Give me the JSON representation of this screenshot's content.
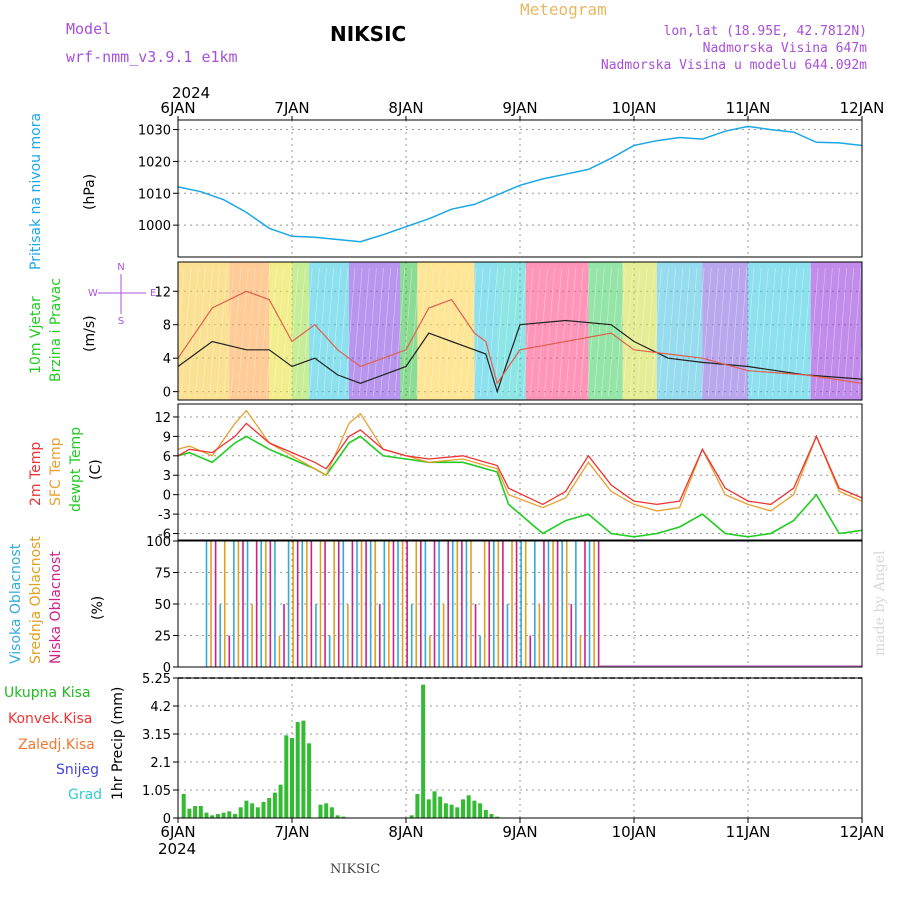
{
  "header": {
    "model_label": "Model",
    "model_name": "wrf-nmm_v3.9.1 e1km",
    "title": "NIKSIC",
    "meteogram": "Meteogram",
    "lonlat": "lon,lat (18.95E, 42.7812N)",
    "altitude": "Nadmorska Visina 647m",
    "model_altitude": "Nadmorska Visina u modelu 644.092m",
    "year_top": "2024",
    "year_bottom": "2024",
    "footer": "NIKSIC",
    "credit": "made by Angel"
  },
  "colors": {
    "pressure": "#1aa7e8",
    "temp2m": "#ee3333",
    "sfc": "#e8a030",
    "dew": "#22cc22",
    "high_cloud": "#33aadd",
    "mid_cloud": "#e0a020",
    "low_cloud": "#cc2288",
    "precip": "#33bb33"
  },
  "time_axis": {
    "ticks": [
      "6JAN",
      "7JAN",
      "8JAN",
      "9JAN",
      "10JAN",
      "11JAN",
      "12JAN"
    ]
  },
  "panels": {
    "pressure": {
      "labels": [
        "Pritisak na nivou mora",
        "(hPa)"
      ]
    },
    "wind": {
      "labels": [
        "10m Vjetar",
        "Brzina i Pravac",
        "(m/s)"
      ],
      "compass": [
        "W",
        "E",
        "N",
        "S"
      ]
    },
    "temp": {
      "labels": [
        "2m Temp",
        "SFC Temp",
        "dewpt Temp",
        "(C)"
      ]
    },
    "cloud": {
      "labels": [
        "Visoka Oblacnost",
        "Srednja Oblacnost",
        "Niska Oblacnost",
        "(%)"
      ]
    },
    "precip": {
      "labels": [
        "Ukupna Kisa",
        "Konvek.Kisa",
        "Zaledj.Kisa",
        "Snijeg",
        "Grad",
        "1hr Precip (mm)"
      ]
    }
  },
  "chart_data": [
    {
      "type": "line",
      "name": "pressure",
      "ylabel": "Pritisak na nivou mora (hPa)",
      "ylim": [
        990,
        1033
      ],
      "yticks": [
        1000,
        1010,
        1020,
        1030
      ],
      "x": [
        0,
        0.2,
        0.4,
        0.6,
        0.8,
        1.0,
        1.2,
        1.4,
        1.6,
        1.8,
        2.0,
        2.2,
        2.4,
        2.6,
        2.8,
        3.0,
        3.2,
        3.4,
        3.6,
        3.8,
        4.0,
        4.2,
        4.4,
        4.6,
        4.8,
        5.0,
        5.2,
        5.4,
        5.6,
        5.8,
        6.0
      ],
      "series": [
        {
          "values": [
            1012,
            1010.5,
            1008,
            1004,
            999,
            996.5,
            996.2,
            995.5,
            994.8,
            997,
            999.5,
            1002,
            1005,
            1006.5,
            1009.5,
            1012.5,
            1014.5,
            1016,
            1017.5,
            1021,
            1025,
            1026.5,
            1027.5,
            1027,
            1029.5,
            1031,
            1030,
            1029.2,
            1026,
            1025.8,
            1025
          ]
        }
      ]
    },
    {
      "type": "line",
      "name": "wind",
      "ylabel": "10m Vjetar Brzina i Pravac (m/s)",
      "ylim": [
        -1,
        15.5
      ],
      "yticks": [
        0,
        4,
        8,
        12
      ],
      "x": [
        0,
        0.3,
        0.6,
        0.8,
        1.0,
        1.2,
        1.4,
        1.6,
        1.8,
        2.0,
        2.2,
        2.4,
        2.6,
        2.7,
        2.8,
        3.0,
        3.4,
        3.8,
        4.0,
        4.3,
        4.6,
        5.0,
        5.5,
        6.0
      ],
      "series": [
        {
          "values": [
            3,
            6,
            5,
            5,
            3,
            4,
            2,
            1,
            2,
            3,
            7,
            6,
            5,
            4.5,
            0,
            8,
            8.5,
            8,
            6,
            4,
            3.5,
            3,
            2,
            1.5
          ]
        },
        {
          "values": [
            4,
            10,
            12,
            11,
            6,
            8,
            5,
            3,
            4,
            5,
            10,
            11,
            7,
            6,
            1,
            5,
            6,
            7,
            5,
            4.5,
            4,
            2.5,
            2,
            1
          ]
        }
      ]
    },
    {
      "type": "line",
      "name": "temperature",
      "ylabel": "(C)",
      "ylim": [
        -7,
        14
      ],
      "yticks": [
        -6,
        -3,
        0,
        3,
        6,
        9,
        12
      ],
      "x": [
        0,
        0.1,
        0.3,
        0.5,
        0.6,
        0.8,
        1.0,
        1.2,
        1.3,
        1.5,
        1.6,
        1.8,
        2.0,
        2.2,
        2.5,
        2.8,
        2.9,
        3.2,
        3.4,
        3.6,
        3.8,
        4.0,
        4.2,
        4.4,
        4.6,
        4.8,
        5.0,
        5.2,
        5.4,
        5.6,
        5.8,
        6.0
      ],
      "series": [
        {
          "name": "2m Temp",
          "values": [
            6,
            7,
            6.5,
            9,
            11,
            8,
            6.5,
            5,
            4,
            9,
            10,
            7,
            6,
            5.5,
            6,
            4.5,
            1,
            -1.5,
            0.5,
            6,
            1.5,
            -1,
            -1.5,
            -1,
            7,
            1,
            -1,
            -1.5,
            1,
            9,
            1,
            -0.5
          ]
        },
        {
          "name": "SFC Temp",
          "values": [
            7,
            7.5,
            6,
            11,
            13,
            8,
            6,
            4,
            3,
            11,
            12.5,
            7,
            6,
            5,
            5.5,
            4,
            0,
            -2,
            -0.5,
            5,
            0.5,
            -1.5,
            -2.5,
            -2,
            7,
            0,
            -1.5,
            -2.5,
            0,
            9,
            0.5,
            -1
          ]
        },
        {
          "name": "dewpt Temp",
          "values": [
            6,
            6.5,
            5,
            8,
            9,
            7,
            5.5,
            4,
            3,
            8,
            9,
            6,
            5.5,
            5,
            5,
            3.5,
            -1.5,
            -6,
            -4,
            -3,
            -6,
            -6.5,
            -6,
            -5,
            -3,
            -6,
            -6.5,
            -6,
            -4,
            0,
            -6,
            -5.5
          ]
        }
      ]
    },
    {
      "type": "bar",
      "name": "cloud",
      "ylabel": "(%)",
      "ylim": [
        0,
        100
      ],
      "yticks": [
        0,
        25,
        50,
        75,
        100
      ],
      "series": [
        {
          "name": "Visoka Oblacnost"
        },
        {
          "name": "Srednja Oblacnost"
        },
        {
          "name": "Niska Oblacnost"
        }
      ],
      "active_range_days": [
        0.25,
        3.7
      ],
      "typical_value": 100
    },
    {
      "type": "bar",
      "name": "precipitation",
      "ylabel": "1hr Precip (mm)",
      "ylim": [
        0,
        5.25
      ],
      "yticks": [
        0,
        1.05,
        2.1,
        3.15,
        4.2,
        5.25
      ],
      "series": [
        {
          "name": "Ukupna Kisa",
          "x": [
            0.05,
            0.1,
            0.15,
            0.2,
            0.25,
            0.3,
            0.35,
            0.4,
            0.45,
            0.5,
            0.55,
            0.6,
            0.65,
            0.7,
            0.75,
            0.8,
            0.85,
            0.9,
            0.95,
            1.0,
            1.05,
            1.1,
            1.15,
            1.25,
            1.3,
            1.35,
            1.4,
            1.45,
            2.05,
            2.1,
            2.15,
            2.2,
            2.25,
            2.3,
            2.35,
            2.4,
            2.45,
            2.5,
            2.55,
            2.6,
            2.65,
            2.7,
            2.75,
            2.8
          ],
          "values": [
            0.9,
            0.35,
            0.45,
            0.45,
            0.2,
            0.1,
            0.15,
            0.2,
            0.25,
            0.15,
            0.4,
            0.65,
            0.55,
            0.4,
            0.6,
            0.75,
            0.95,
            1.25,
            3.1,
            3.0,
            3.6,
            3.65,
            2.8,
            0.5,
            0.55,
            0.4,
            0.1,
            0.05,
            0.1,
            0.9,
            5.0,
            0.7,
            1.0,
            0.8,
            0.55,
            0.5,
            0.4,
            0.7,
            0.85,
            0.65,
            0.55,
            0.3,
            0.15,
            0.05
          ]
        }
      ]
    }
  ]
}
